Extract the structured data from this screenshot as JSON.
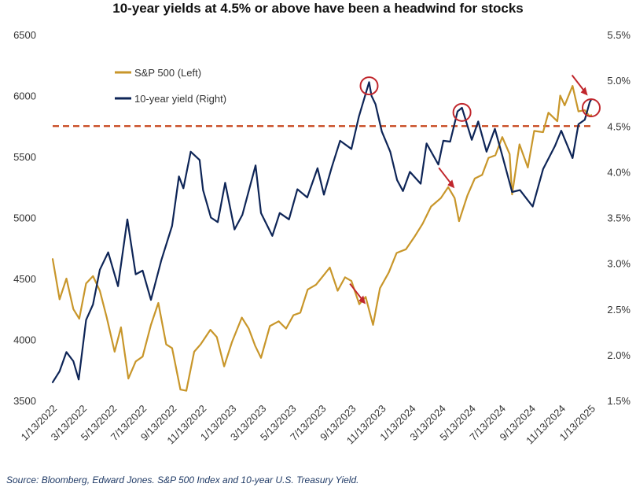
{
  "title": "10-year yields at 4.5% or above have been a headwind for stocks",
  "source": "Source: Bloomberg, Edward Jones. S&P 500 Index and 10-year U.S. Treasury Yield.",
  "colors": {
    "sp500": "#c8962a",
    "yield": "#0e2557",
    "threshold": "#c8471f",
    "annotation": "#c0262c"
  },
  "chart_data": {
    "type": "line",
    "title": "10-year yields at 4.5% or above have been a headwind for stocks",
    "legend": [
      "S&P 500 (Left)",
      "10-year yield (Right)"
    ],
    "legend_placement": "top-left",
    "grid": false,
    "x_tick_labels": [
      "1/13/2022",
      "3/13/2022",
      "5/13/2022",
      "7/13/2022",
      "9/13/2022",
      "11/13/2022",
      "1/13/2023",
      "3/13/2023",
      "5/13/2023",
      "7/13/2023",
      "9/13/2023",
      "11/13/2023",
      "1/13/2024",
      "3/13/2024",
      "5/13/2024",
      "7/13/2024",
      "9/13/2024",
      "11/13/2024",
      "1/13/2025"
    ],
    "x_range": [
      "2022-01-13",
      "2025-01-13"
    ],
    "y_left": {
      "label": "S&P 500 (Left)",
      "range": [
        3500,
        6500
      ],
      "ticks": [
        "3500",
        "4000",
        "4500",
        "5000",
        "5500",
        "6000",
        "6500"
      ]
    },
    "y_right": {
      "label": "10-year yield (Right)",
      "range": [
        1.5,
        5.5
      ],
      "ticks": [
        "1.5%",
        "2.0%",
        "2.5%",
        "3.0%",
        "3.5%",
        "4.0%",
        "4.5%",
        "5.0%",
        "5.5%"
      ]
    },
    "threshold": {
      "axis": "right",
      "value": 4.5,
      "style": "dashed"
    },
    "series": [
      {
        "name": "S&P 500 (Left)",
        "axis": "left",
        "points": [
          [
            "2022-01-13",
            4660
          ],
          [
            "2022-01-27",
            4330
          ],
          [
            "2022-02-10",
            4500
          ],
          [
            "2022-02-24",
            4250
          ],
          [
            "2022-03-08",
            4170
          ],
          [
            "2022-03-22",
            4460
          ],
          [
            "2022-04-05",
            4520
          ],
          [
            "2022-04-19",
            4400
          ],
          [
            "2022-05-03",
            4180
          ],
          [
            "2022-05-19",
            3900
          ],
          [
            "2022-06-01",
            4100
          ],
          [
            "2022-06-16",
            3680
          ],
          [
            "2022-07-01",
            3820
          ],
          [
            "2022-07-15",
            3860
          ],
          [
            "2022-08-01",
            4120
          ],
          [
            "2022-08-16",
            4300
          ],
          [
            "2022-09-01",
            3960
          ],
          [
            "2022-09-13",
            3930
          ],
          [
            "2022-09-30",
            3590
          ],
          [
            "2022-10-12",
            3580
          ],
          [
            "2022-10-28",
            3900
          ],
          [
            "2022-11-10",
            3960
          ],
          [
            "2022-11-30",
            4080
          ],
          [
            "2022-12-13",
            4020
          ],
          [
            "2022-12-28",
            3780
          ],
          [
            "2023-01-13",
            3980
          ],
          [
            "2023-02-02",
            4180
          ],
          [
            "2023-02-16",
            4090
          ],
          [
            "2023-03-01",
            3950
          ],
          [
            "2023-03-13",
            3850
          ],
          [
            "2023-03-31",
            4110
          ],
          [
            "2023-04-18",
            4150
          ],
          [
            "2023-05-03",
            4090
          ],
          [
            "2023-05-18",
            4200
          ],
          [
            "2023-06-01",
            4220
          ],
          [
            "2023-06-16",
            4410
          ],
          [
            "2023-07-03",
            4450
          ],
          [
            "2023-07-17",
            4520
          ],
          [
            "2023-07-31",
            4590
          ],
          [
            "2023-08-16",
            4400
          ],
          [
            "2023-08-31",
            4510
          ],
          [
            "2023-09-13",
            4480
          ],
          [
            "2023-09-29",
            4290
          ],
          [
            "2023-10-12",
            4350
          ],
          [
            "2023-10-27",
            4120
          ],
          [
            "2023-11-10",
            4420
          ],
          [
            "2023-11-28",
            4550
          ],
          [
            "2023-12-14",
            4710
          ],
          [
            "2024-01-02",
            4740
          ],
          [
            "2024-01-19",
            4840
          ],
          [
            "2024-02-05",
            4950
          ],
          [
            "2024-02-22",
            5090
          ],
          [
            "2024-03-13",
            5160
          ],
          [
            "2024-03-28",
            5250
          ],
          [
            "2024-04-10",
            5160
          ],
          [
            "2024-04-19",
            4970
          ],
          [
            "2024-05-06",
            5180
          ],
          [
            "2024-05-21",
            5320
          ],
          [
            "2024-06-05",
            5350
          ],
          [
            "2024-06-18",
            5490
          ],
          [
            "2024-07-02",
            5510
          ],
          [
            "2024-07-16",
            5660
          ],
          [
            "2024-07-31",
            5520
          ],
          [
            "2024-08-05",
            5190
          ],
          [
            "2024-08-20",
            5600
          ],
          [
            "2024-09-06",
            5410
          ],
          [
            "2024-09-19",
            5710
          ],
          [
            "2024-10-07",
            5700
          ],
          [
            "2024-10-18",
            5860
          ],
          [
            "2024-11-05",
            5790
          ],
          [
            "2024-11-11",
            6000
          ],
          [
            "2024-11-20",
            5920
          ],
          [
            "2024-12-06",
            6080
          ],
          [
            "2024-12-18",
            5870
          ],
          [
            "2024-12-31",
            5880
          ],
          [
            "2025-01-10",
            5830
          ],
          [
            "2025-01-13",
            5840
          ]
        ]
      },
      {
        "name": "10-year yield (Right)",
        "axis": "right",
        "points": [
          [
            "2022-01-13",
            1.7
          ],
          [
            "2022-01-27",
            1.82
          ],
          [
            "2022-02-10",
            2.03
          ],
          [
            "2022-02-24",
            1.93
          ],
          [
            "2022-03-07",
            1.73
          ],
          [
            "2022-03-22",
            2.38
          ],
          [
            "2022-04-05",
            2.55
          ],
          [
            "2022-04-19",
            2.93
          ],
          [
            "2022-05-06",
            3.12
          ],
          [
            "2022-05-26",
            2.75
          ],
          [
            "2022-06-14",
            3.48
          ],
          [
            "2022-07-01",
            2.88
          ],
          [
            "2022-07-15",
            2.92
          ],
          [
            "2022-08-01",
            2.6
          ],
          [
            "2022-08-22",
            3.03
          ],
          [
            "2022-09-13",
            3.41
          ],
          [
            "2022-09-27",
            3.95
          ],
          [
            "2022-10-06",
            3.82
          ],
          [
            "2022-10-21",
            4.22
          ],
          [
            "2022-11-08",
            4.13
          ],
          [
            "2022-11-15",
            3.8
          ],
          [
            "2022-12-01",
            3.5
          ],
          [
            "2022-12-15",
            3.45
          ],
          [
            "2022-12-30",
            3.88
          ],
          [
            "2023-01-18",
            3.37
          ],
          [
            "2023-02-03",
            3.53
          ],
          [
            "2023-03-02",
            4.07
          ],
          [
            "2023-03-13",
            3.55
          ],
          [
            "2023-04-05",
            3.3
          ],
          [
            "2023-04-20",
            3.55
          ],
          [
            "2023-05-09",
            3.48
          ],
          [
            "2023-05-26",
            3.81
          ],
          [
            "2023-06-15",
            3.72
          ],
          [
            "2023-07-06",
            4.04
          ],
          [
            "2023-07-19",
            3.75
          ],
          [
            "2023-08-04",
            4.05
          ],
          [
            "2023-08-21",
            4.34
          ],
          [
            "2023-09-13",
            4.25
          ],
          [
            "2023-09-28",
            4.6
          ],
          [
            "2023-10-19",
            4.98
          ],
          [
            "2023-10-24",
            4.83
          ],
          [
            "2023-11-01",
            4.74
          ],
          [
            "2023-11-14",
            4.44
          ],
          [
            "2023-12-01",
            4.22
          ],
          [
            "2023-12-15",
            3.91
          ],
          [
            "2023-12-27",
            3.79
          ],
          [
            "2024-01-10",
            4.0
          ],
          [
            "2024-02-01",
            3.87
          ],
          [
            "2024-02-13",
            4.31
          ],
          [
            "2024-03-08",
            4.08
          ],
          [
            "2024-03-18",
            4.34
          ],
          [
            "2024-04-01",
            4.33
          ],
          [
            "2024-04-16",
            4.66
          ],
          [
            "2024-04-25",
            4.7
          ],
          [
            "2024-05-15",
            4.35
          ],
          [
            "2024-05-28",
            4.55
          ],
          [
            "2024-06-14",
            4.22
          ],
          [
            "2024-07-01",
            4.47
          ],
          [
            "2024-07-17",
            4.16
          ],
          [
            "2024-08-05",
            3.78
          ],
          [
            "2024-08-21",
            3.8
          ],
          [
            "2024-09-16",
            3.62
          ],
          [
            "2024-10-07",
            4.03
          ],
          [
            "2024-10-31",
            4.28
          ],
          [
            "2024-11-13",
            4.45
          ],
          [
            "2024-12-06",
            4.15
          ],
          [
            "2024-12-18",
            4.52
          ],
          [
            "2024-12-31",
            4.57
          ],
          [
            "2025-01-10",
            4.76
          ],
          [
            "2025-01-13",
            4.79
          ]
        ]
      }
    ],
    "annotations": {
      "circles_on_yield": [
        {
          "date": "2023-10-19",
          "value": 4.94
        },
        {
          "date": "2024-04-25",
          "value": 4.65
        },
        {
          "date": "2025-01-13",
          "value": 4.7
        }
      ],
      "arrows_on_sp500": [
        {
          "date": "2023-10-12",
          "value": 4290
        },
        {
          "date": "2024-04-10",
          "value": 5240
        },
        {
          "date": "2025-01-06",
          "value": 6000
        }
      ]
    }
  }
}
